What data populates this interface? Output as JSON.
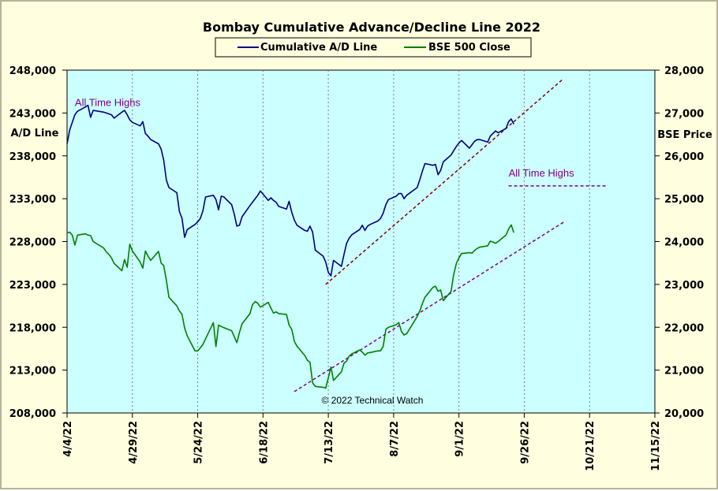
{
  "chart_data": {
    "type": "line",
    "title": "Bombay Cumulative Advance/Decline Line 2022",
    "legend": {
      "placement": "top-center",
      "entries": [
        "Cumulative A/D Line",
        "BSE 500 Close"
      ]
    },
    "ylabel_left": "A/D Line",
    "ylabel_right": "BSE Price",
    "copyright": "© 2022 Technical Watch",
    "x_ticks": [
      "4/4/22",
      "4/29/22",
      "5/24/22",
      "6/18/22",
      "7/13/22",
      "8/7/22",
      "9/1/22",
      "9/26/22",
      "10/21/22",
      "11/15/22"
    ],
    "xlim": [
      "2022-04-04",
      "2022-11-15"
    ],
    "y_left": {
      "ticks": [
        "208,000",
        "213,000",
        "218,000",
        "223,000",
        "228,000",
        "233,000",
        "238,000",
        "243,000",
        "248,000"
      ],
      "lim": [
        208000,
        248000
      ]
    },
    "y_right": {
      "ticks": [
        "20,000",
        "21,000",
        "22,000",
        "23,000",
        "24,000",
        "25,000",
        "26,000",
        "27,000",
        "28,000"
      ],
      "lim": [
        20000,
        28000
      ]
    },
    "grid": "vertical",
    "plot_background": "#ccffff",
    "series": [
      {
        "name": "Cumulative A/D Line",
        "axis": "left",
        "color": "#000080",
        "points": [
          [
            "2022-04-04",
            239400
          ],
          [
            "2022-04-05",
            241000
          ],
          [
            "2022-04-06",
            241900
          ],
          [
            "2022-04-07",
            242800
          ],
          [
            "2022-04-08",
            243200
          ],
          [
            "2022-04-11",
            243700
          ],
          [
            "2022-04-12",
            243900
          ],
          [
            "2022-04-13",
            242500
          ],
          [
            "2022-04-14",
            243300
          ],
          [
            "2022-04-18",
            243100
          ],
          [
            "2022-04-19",
            243000
          ],
          [
            "2022-04-20",
            242900
          ],
          [
            "2022-04-21",
            242800
          ],
          [
            "2022-04-22",
            242400
          ],
          [
            "2022-04-25",
            243100
          ],
          [
            "2022-04-26",
            243300
          ],
          [
            "2022-04-27",
            242800
          ],
          [
            "2022-04-28",
            242200
          ],
          [
            "2022-04-29",
            241900
          ],
          [
            "2022-05-02",
            241500
          ],
          [
            "2022-05-03",
            242000
          ],
          [
            "2022-05-04",
            240600
          ],
          [
            "2022-05-05",
            240300
          ],
          [
            "2022-05-06",
            239900
          ],
          [
            "2022-05-09",
            239400
          ],
          [
            "2022-05-10",
            238800
          ],
          [
            "2022-05-11",
            237500
          ],
          [
            "2022-05-12",
            235200
          ],
          [
            "2022-05-13",
            234300
          ],
          [
            "2022-05-16",
            233700
          ],
          [
            "2022-05-17",
            231500
          ],
          [
            "2022-05-18",
            230700
          ],
          [
            "2022-05-19",
            228500
          ],
          [
            "2022-05-20",
            229400
          ],
          [
            "2022-05-23",
            230000
          ],
          [
            "2022-05-24",
            230300
          ],
          [
            "2022-05-25",
            230700
          ],
          [
            "2022-05-26",
            231600
          ],
          [
            "2022-05-27",
            233200
          ],
          [
            "2022-05-30",
            233400
          ],
          [
            "2022-05-31",
            232900
          ],
          [
            "2022-06-01",
            231700
          ],
          [
            "2022-06-02",
            233300
          ],
          [
            "2022-06-03",
            233200
          ],
          [
            "2022-06-06",
            232300
          ],
          [
            "2022-06-07",
            231200
          ],
          [
            "2022-06-08",
            229800
          ],
          [
            "2022-06-09",
            229900
          ],
          [
            "2022-06-10",
            230900
          ],
          [
            "2022-06-13",
            232200
          ],
          [
            "2022-06-14",
            232600
          ],
          [
            "2022-06-15",
            233000
          ],
          [
            "2022-06-16",
            233400
          ],
          [
            "2022-06-17",
            233900
          ],
          [
            "2022-06-20",
            232800
          ],
          [
            "2022-06-21",
            233100
          ],
          [
            "2022-06-22",
            232800
          ],
          [
            "2022-06-23",
            232600
          ],
          [
            "2022-06-24",
            232100
          ],
          [
            "2022-06-27",
            231800
          ],
          [
            "2022-06-28",
            232700
          ],
          [
            "2022-06-29",
            231400
          ],
          [
            "2022-06-30",
            230500
          ],
          [
            "2022-07-01",
            229900
          ],
          [
            "2022-07-04",
            229300
          ],
          [
            "2022-07-05",
            229200
          ],
          [
            "2022-07-06",
            229800
          ],
          [
            "2022-07-07",
            229100
          ],
          [
            "2022-07-08",
            227000
          ],
          [
            "2022-07-11",
            226300
          ],
          [
            "2022-07-12",
            225600
          ],
          [
            "2022-07-13",
            224400
          ],
          [
            "2022-07-14",
            224000
          ],
          [
            "2022-07-15",
            225800
          ],
          [
            "2022-07-18",
            225100
          ],
          [
            "2022-07-19",
            226500
          ],
          [
            "2022-07-20",
            227800
          ],
          [
            "2022-07-21",
            228400
          ],
          [
            "2022-07-22",
            228800
          ],
          [
            "2022-07-25",
            229400
          ],
          [
            "2022-07-26",
            229900
          ],
          [
            "2022-07-27",
            229300
          ],
          [
            "2022-07-28",
            229800
          ],
          [
            "2022-07-29",
            230000
          ],
          [
            "2022-08-01",
            230400
          ],
          [
            "2022-08-02",
            230700
          ],
          [
            "2022-08-03",
            231300
          ],
          [
            "2022-08-04",
            232300
          ],
          [
            "2022-08-05",
            232900
          ],
          [
            "2022-08-08",
            233300
          ],
          [
            "2022-08-09",
            233600
          ],
          [
            "2022-08-10",
            233600
          ],
          [
            "2022-08-11",
            233000
          ],
          [
            "2022-08-12",
            233400
          ],
          [
            "2022-08-16",
            234300
          ],
          [
            "2022-08-17",
            235200
          ],
          [
            "2022-08-18",
            236200
          ],
          [
            "2022-08-19",
            237100
          ],
          [
            "2022-08-22",
            236900
          ],
          [
            "2022-08-23",
            237000
          ],
          [
            "2022-08-24",
            235800
          ],
          [
            "2022-08-25",
            236300
          ],
          [
            "2022-08-26",
            237300
          ],
          [
            "2022-08-29",
            238100
          ],
          [
            "2022-08-30",
            238600
          ],
          [
            "2022-08-31",
            239100
          ],
          [
            "2022-09-01",
            239500
          ],
          [
            "2022-09-02",
            239800
          ],
          [
            "2022-09-05",
            238900
          ],
          [
            "2022-09-06",
            239300
          ],
          [
            "2022-09-07",
            239700
          ],
          [
            "2022-09-08",
            239900
          ],
          [
            "2022-09-09",
            239900
          ],
          [
            "2022-09-12",
            239600
          ],
          [
            "2022-09-13",
            240300
          ],
          [
            "2022-09-14",
            240600
          ],
          [
            "2022-09-15",
            240900
          ],
          [
            "2022-09-16",
            240700
          ],
          [
            "2022-09-19",
            241200
          ],
          [
            "2022-09-20",
            242000
          ],
          [
            "2022-09-21",
            242300
          ],
          [
            "2022-09-22",
            241700
          ]
        ]
      },
      {
        "name": "BSE 500 Close",
        "axis": "right",
        "color": "#008000",
        "points": [
          [
            "2022-04-04",
            24200
          ],
          [
            "2022-04-05",
            24220
          ],
          [
            "2022-04-06",
            24150
          ],
          [
            "2022-04-07",
            23920
          ],
          [
            "2022-04-08",
            24150
          ],
          [
            "2022-04-11",
            24180
          ],
          [
            "2022-04-12",
            24150
          ],
          [
            "2022-04-13",
            24140
          ],
          [
            "2022-04-14",
            24000
          ],
          [
            "2022-04-18",
            23850
          ],
          [
            "2022-04-19",
            23760
          ],
          [
            "2022-04-20",
            23700
          ],
          [
            "2022-04-21",
            23620
          ],
          [
            "2022-04-22",
            23490
          ],
          [
            "2022-04-25",
            23320
          ],
          [
            "2022-04-26",
            23580
          ],
          [
            "2022-04-27",
            23400
          ],
          [
            "2022-04-28",
            23940
          ],
          [
            "2022-04-29",
            23780
          ],
          [
            "2022-05-02",
            23520
          ],
          [
            "2022-05-03",
            23380
          ],
          [
            "2022-05-04",
            23780
          ],
          [
            "2022-05-05",
            23660
          ],
          [
            "2022-05-06",
            23560
          ],
          [
            "2022-05-09",
            23770
          ],
          [
            "2022-05-10",
            23500
          ],
          [
            "2022-05-11",
            23440
          ],
          [
            "2022-05-12",
            23100
          ],
          [
            "2022-05-13",
            22700
          ],
          [
            "2022-05-16",
            22500
          ],
          [
            "2022-05-17",
            22380
          ],
          [
            "2022-05-18",
            22300
          ],
          [
            "2022-05-19",
            21980
          ],
          [
            "2022-05-20",
            21800
          ],
          [
            "2022-05-23",
            21450
          ],
          [
            "2022-05-24",
            21450
          ],
          [
            "2022-05-25",
            21520
          ],
          [
            "2022-05-26",
            21600
          ],
          [
            "2022-05-27",
            21730
          ],
          [
            "2022-05-30",
            22110
          ],
          [
            "2022-05-31",
            21550
          ],
          [
            "2022-06-01",
            22050
          ],
          [
            "2022-06-02",
            22020
          ],
          [
            "2022-06-03",
            21990
          ],
          [
            "2022-06-06",
            21920
          ],
          [
            "2022-06-07",
            21780
          ],
          [
            "2022-06-08",
            21640
          ],
          [
            "2022-06-09",
            21880
          ],
          [
            "2022-06-10",
            22080
          ],
          [
            "2022-06-13",
            22320
          ],
          [
            "2022-06-14",
            22530
          ],
          [
            "2022-06-15",
            22600
          ],
          [
            "2022-06-16",
            22560
          ],
          [
            "2022-06-17",
            22470
          ],
          [
            "2022-06-20",
            22580
          ],
          [
            "2022-06-21",
            22450
          ],
          [
            "2022-06-22",
            22330
          ],
          [
            "2022-06-23",
            22360
          ],
          [
            "2022-06-24",
            22320
          ],
          [
            "2022-06-27",
            22300
          ],
          [
            "2022-06-28",
            22050
          ],
          [
            "2022-06-29",
            21950
          ],
          [
            "2022-06-30",
            21670
          ],
          [
            "2022-07-01",
            21560
          ],
          [
            "2022-07-04",
            21340
          ],
          [
            "2022-07-05",
            21230
          ],
          [
            "2022-07-06",
            21180
          ],
          [
            "2022-07-07",
            20700
          ],
          [
            "2022-07-08",
            20620
          ],
          [
            "2022-07-11",
            20600
          ],
          [
            "2022-07-12",
            20580
          ],
          [
            "2022-07-13",
            20820
          ],
          [
            "2022-07-14",
            21070
          ],
          [
            "2022-07-15",
            20760
          ],
          [
            "2022-07-18",
            20960
          ],
          [
            "2022-07-19",
            21160
          ],
          [
            "2022-07-20",
            21210
          ],
          [
            "2022-07-21",
            21330
          ],
          [
            "2022-07-22",
            21380
          ],
          [
            "2022-07-25",
            21470
          ],
          [
            "2022-07-26",
            21420
          ],
          [
            "2022-07-27",
            21350
          ],
          [
            "2022-07-28",
            21400
          ],
          [
            "2022-07-29",
            21410
          ],
          [
            "2022-08-01",
            21450
          ],
          [
            "2022-08-02",
            21450
          ],
          [
            "2022-08-03",
            21550
          ],
          [
            "2022-08-04",
            21950
          ],
          [
            "2022-08-05",
            22000
          ],
          [
            "2022-08-08",
            22060
          ],
          [
            "2022-08-09",
            22110
          ],
          [
            "2022-08-10",
            21900
          ],
          [
            "2022-08-11",
            21820
          ],
          [
            "2022-08-12",
            21850
          ],
          [
            "2022-08-16",
            22250
          ],
          [
            "2022-08-17",
            22380
          ],
          [
            "2022-08-18",
            22550
          ],
          [
            "2022-08-19",
            22700
          ],
          [
            "2022-08-22",
            22930
          ],
          [
            "2022-08-23",
            22960
          ],
          [
            "2022-08-24",
            22840
          ],
          [
            "2022-08-25",
            22870
          ],
          [
            "2022-08-26",
            22620
          ],
          [
            "2022-08-29",
            22840
          ],
          [
            "2022-08-30",
            23230
          ],
          [
            "2022-08-31",
            23490
          ],
          [
            "2022-09-01",
            23620
          ],
          [
            "2022-09-02",
            23720
          ],
          [
            "2022-09-05",
            23740
          ],
          [
            "2022-09-06",
            23730
          ],
          [
            "2022-09-07",
            23790
          ],
          [
            "2022-09-08",
            23840
          ],
          [
            "2022-09-09",
            23870
          ],
          [
            "2022-09-12",
            23900
          ],
          [
            "2022-09-13",
            24010
          ],
          [
            "2022-09-14",
            23990
          ],
          [
            "2022-09-15",
            23960
          ],
          [
            "2022-09-16",
            24000
          ],
          [
            "2022-09-19",
            24150
          ],
          [
            "2022-09-20",
            24290
          ],
          [
            "2022-09-21",
            24390
          ],
          [
            "2022-09-22",
            24210
          ]
        ]
      }
    ],
    "annotations": [
      {
        "text": "All Time Highs",
        "at": [
          "2022-04-07",
          243800
        ],
        "axis": "left"
      },
      {
        "text": "All Time Highs",
        "at": [
          "2022-09-20",
          25520
        ],
        "axis": "right"
      }
    ],
    "reference_lines": [
      {
        "kind": "trendline",
        "axis": "left",
        "from": [
          "2022-07-12",
          223000
        ],
        "to": [
          "2022-10-11",
          247000
        ],
        "color": "#800000",
        "style": "dashed"
      },
      {
        "kind": "trendline",
        "axis": "right",
        "from": [
          "2022-06-30",
          20500
        ],
        "to": [
          "2022-10-11",
          24450
        ],
        "color": "#800080",
        "style": "dashed"
      },
      {
        "kind": "horizontal",
        "axis": "right",
        "y": 25300,
        "from": "2022-09-20",
        "to": "2022-10-28",
        "color": "#800080",
        "style": "dashed"
      }
    ]
  }
}
